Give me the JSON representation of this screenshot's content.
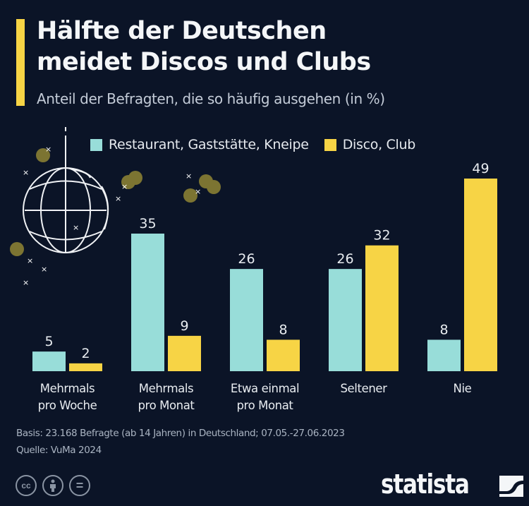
{
  "title_line1": "Hälfte der Deutschen",
  "title_line2": "meidet Discos und Clubs",
  "subtitle": "Anteil der Befragten, die so häufig ausgehen (in %)",
  "colors": {
    "background": "#0b1427",
    "series1": "#98ddd9",
    "series2": "#f7d445",
    "accent": "#f7d445"
  },
  "chart_data": {
    "type": "bar",
    "title": "Hälfte der Deutschen meidet Discos und Clubs",
    "subtitle": "Anteil der Befragten, die so häufig ausgehen (in %)",
    "xlabel": "",
    "ylabel": "",
    "ylim": [
      0,
      49
    ],
    "grid": false,
    "legend_position": "top",
    "categories": [
      [
        "Mehrmals",
        "pro Woche"
      ],
      [
        "Mehrmals",
        "pro Monat"
      ],
      [
        "Etwa einmal",
        "pro Monat"
      ],
      [
        "Seltener"
      ],
      [
        "Nie"
      ]
    ],
    "series": [
      {
        "name": "Restaurant, Gaststätte, Kneipe",
        "color": "#98ddd9",
        "values": [
          5,
          35,
          26,
          26,
          8
        ]
      },
      {
        "name": "Disco, Club",
        "color": "#f7d445",
        "values": [
          2,
          9,
          8,
          32,
          49
        ]
      }
    ]
  },
  "footer": {
    "basis": "Basis: 23.168 Befragte (ab 14 Jahren) in Deutschland; 07.05.-27.06.2023",
    "source": "Quelle: VuMa 2024",
    "license_icons": [
      "cc-icon",
      "by-icon",
      "nd-icon"
    ],
    "cc_label": "cc",
    "nd_label": "="
  },
  "brand": "statista"
}
